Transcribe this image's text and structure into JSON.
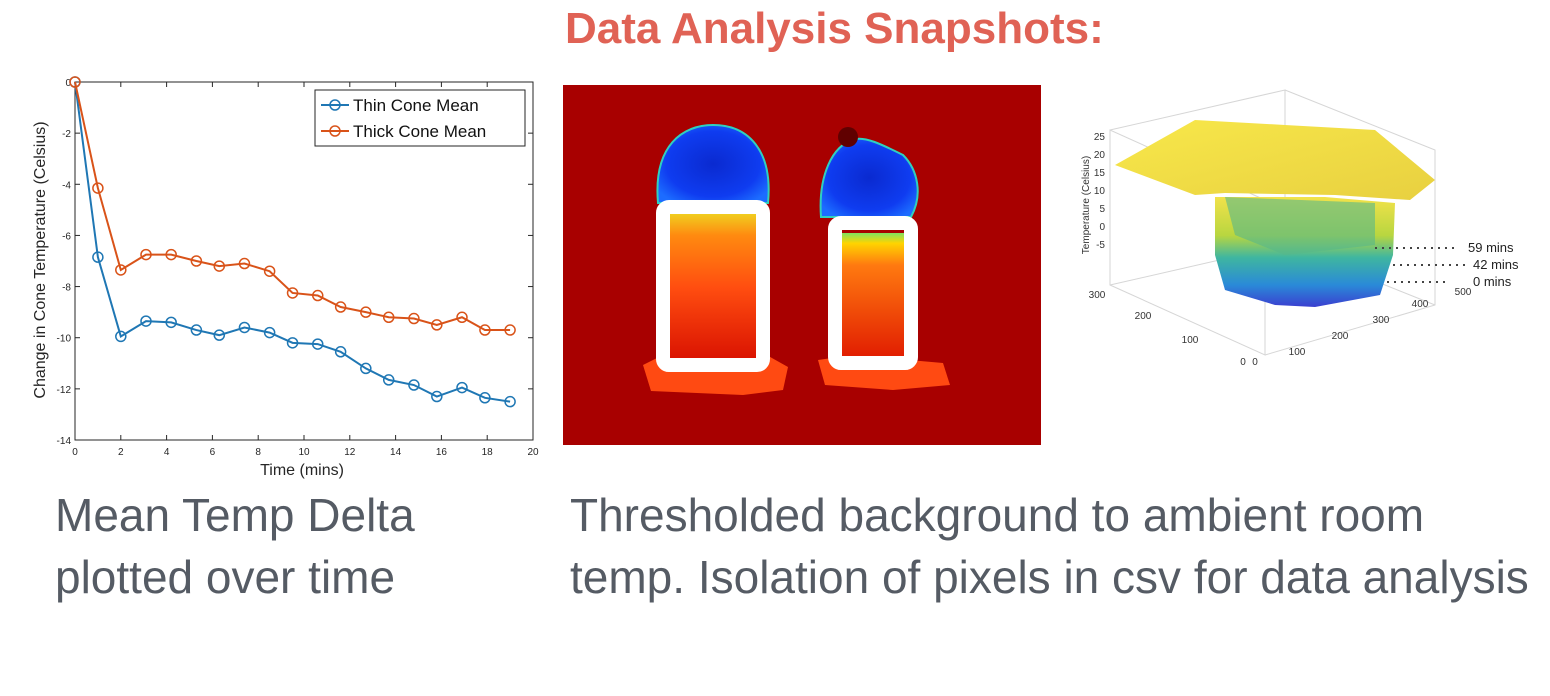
{
  "title": "Data Analysis Snapshots:",
  "captions": {
    "left": "Mean Temp Delta plotted over time",
    "right": "Thresholded background to ambient room temp. Isolation of pixels in csv for data analysis"
  },
  "colors": {
    "title": "#e06255",
    "caption": "#555b64",
    "thin_series": "#1f77b4",
    "thick_series": "#d95319",
    "thermal_background": "#a80000"
  },
  "chart_data": [
    {
      "type": "line",
      "xlabel": "Time (mins)",
      "ylabel": "Change in Cone Temperature (Celsius)",
      "xlim": [
        0,
        20
      ],
      "ylim": [
        -14,
        0
      ],
      "xticks": [
        0,
        2,
        4,
        6,
        8,
        10,
        12,
        14,
        16,
        18,
        20
      ],
      "yticks": [
        0,
        -2,
        -4,
        -6,
        -8,
        -10,
        -12,
        -14
      ],
      "legend_position": "top-right",
      "grid": false,
      "x": [
        0,
        1,
        2,
        3.1,
        4.2,
        5.3,
        6.3,
        7.4,
        8.5,
        9.5,
        10.6,
        11.6,
        12.7,
        13.7,
        14.8,
        15.8,
        16.9,
        17.9,
        19
      ],
      "series": [
        {
          "name": "Thin Cone Mean",
          "marker": "circle",
          "values": [
            0,
            -6.85,
            -9.95,
            -9.35,
            -9.4,
            -9.7,
            -9.9,
            -9.6,
            -9.8,
            -10.2,
            -10.25,
            -10.55,
            -11.2,
            -11.65,
            -11.85,
            -12.3,
            -11.95,
            -12.35,
            -12.5
          ]
        },
        {
          "name": "Thick Cone Mean",
          "marker": "circle",
          "values": [
            0,
            -4.15,
            -7.35,
            -6.75,
            -6.75,
            -7.0,
            -7.2,
            -7.1,
            -7.4,
            -8.25,
            -8.35,
            -8.8,
            -9.0,
            -9.2,
            -9.25,
            -9.5,
            -9.2,
            -9.7,
            -9.7
          ]
        }
      ]
    },
    {
      "type": "heatmap",
      "ylabel": "Temperature (Celsius)",
      "zticks": [
        25,
        20,
        15,
        10,
        5,
        0,
        -5
      ],
      "x_ticks": [
        0,
        100,
        200,
        300,
        400,
        500
      ],
      "y_ticks": [
        0,
        100,
        200,
        300
      ],
      "annotations": [
        "59 mins",
        "42 mins",
        "0 mins"
      ]
    }
  ]
}
